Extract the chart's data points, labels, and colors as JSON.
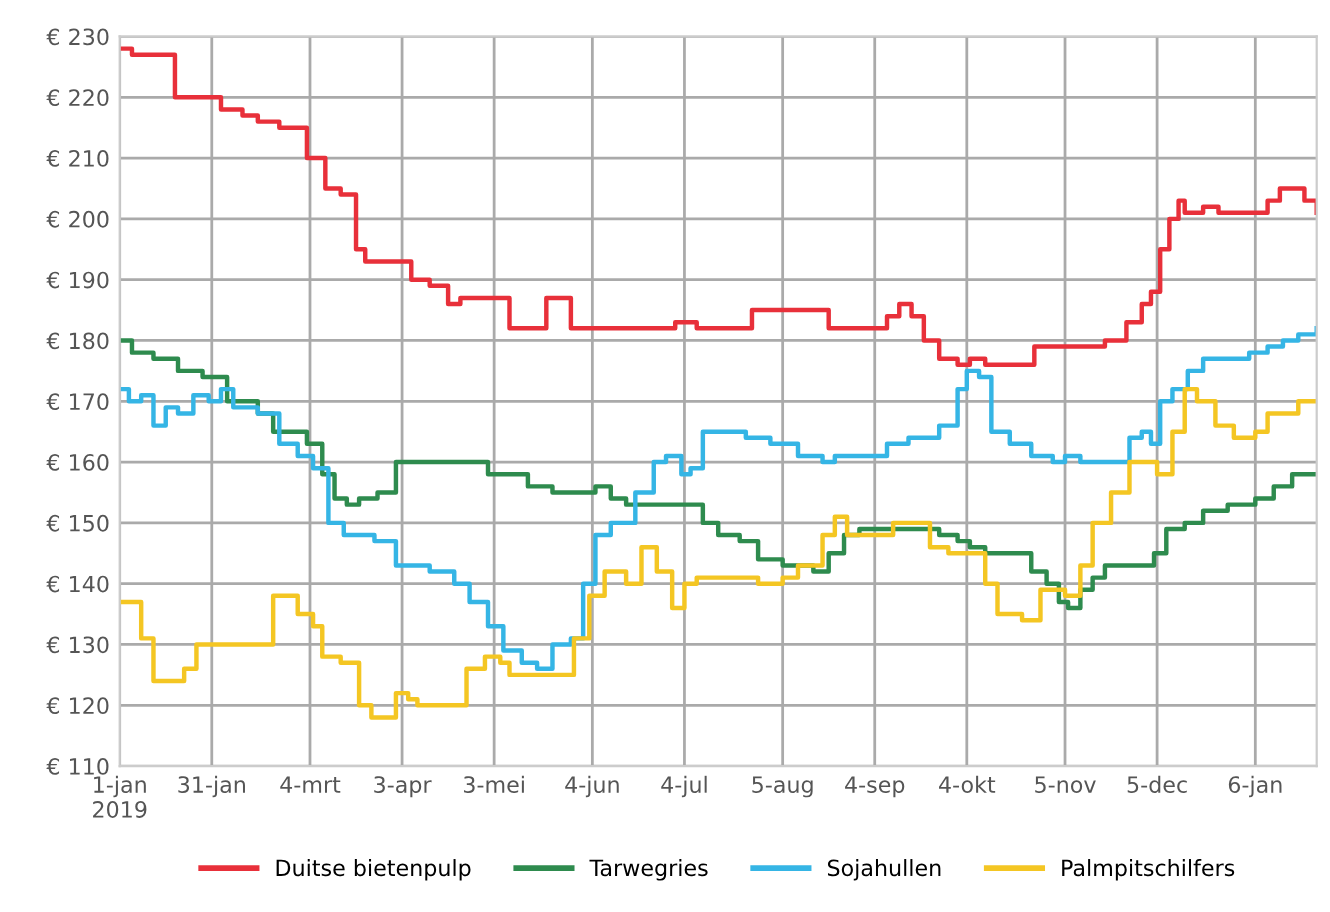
{
  "chart_data": {
    "type": "step",
    "xlim": [
      "2019-01-01",
      "2020-01-26"
    ],
    "xticks": [
      {
        "value": "2019-01-01",
        "label": "1-jan\n2019"
      },
      {
        "value": "2019-01-31",
        "label": "31-jan"
      },
      {
        "value": "2019-03-04",
        "label": "4-mrt"
      },
      {
        "value": "2019-04-03",
        "label": "3-apr"
      },
      {
        "value": "2019-05-03",
        "label": "3-mei"
      },
      {
        "value": "2019-06-04",
        "label": "4-jun"
      },
      {
        "value": "2019-07-04",
        "label": "4-jul"
      },
      {
        "value": "2019-08-05",
        "label": "5-aug"
      },
      {
        "value": "2019-09-04",
        "label": "4-sep"
      },
      {
        "value": "2019-10-04",
        "label": "4-okt"
      },
      {
        "value": "2019-11-05",
        "label": "5-nov"
      },
      {
        "value": "2019-12-05",
        "label": "5-dec"
      },
      {
        "value": "2020-01-06",
        "label": "6-jan"
      }
    ],
    "ylim": [
      110,
      230
    ],
    "yticks": [
      {
        "value": 110,
        "label": "€ 110"
      },
      {
        "value": 120,
        "label": "€ 120"
      },
      {
        "value": 130,
        "label": "€ 130"
      },
      {
        "value": 140,
        "label": "€ 140"
      },
      {
        "value": 150,
        "label": "€ 150"
      },
      {
        "value": 160,
        "label": "€ 160"
      },
      {
        "value": 170,
        "label": "€ 170"
      },
      {
        "value": 180,
        "label": "€ 180"
      },
      {
        "value": 190,
        "label": "€ 190"
      },
      {
        "value": 200,
        "label": "€ 200"
      },
      {
        "value": 210,
        "label": "€ 210"
      },
      {
        "value": 220,
        "label": "€ 220"
      },
      {
        "value": 230,
        "label": "€ 230"
      }
    ],
    "grid": true,
    "legend": "bottom",
    "line_style": "solid",
    "marker": "none",
    "series": [
      {
        "name": "Duitse bietenpulp",
        "color": "#e8303a",
        "x": [
          "2019-01-01",
          "2019-01-05",
          "2019-01-14",
          "2019-01-19",
          "2019-01-31",
          "2019-02-03",
          "2019-02-10",
          "2019-02-15",
          "2019-02-22",
          "2019-02-28",
          "2019-03-03",
          "2019-03-06",
          "2019-03-09",
          "2019-03-14",
          "2019-03-19",
          "2019-03-22",
          "2019-04-03",
          "2019-04-06",
          "2019-04-12",
          "2019-04-18",
          "2019-04-22",
          "2019-05-05",
          "2019-05-08",
          "2019-05-17",
          "2019-05-20",
          "2019-05-25",
          "2019-05-28",
          "2019-06-20",
          "2019-06-28",
          "2019-07-01",
          "2019-07-08",
          "2019-07-22",
          "2019-07-26",
          "2019-08-15",
          "2019-08-20",
          "2019-09-05",
          "2019-09-08",
          "2019-09-12",
          "2019-09-16",
          "2019-09-20",
          "2019-09-25",
          "2019-10-01",
          "2019-10-05",
          "2019-10-10",
          "2019-10-20",
          "2019-10-26",
          "2019-11-10",
          "2019-11-18",
          "2019-11-25",
          "2019-11-30",
          "2019-12-03",
          "2019-12-06",
          "2019-12-09",
          "2019-12-12",
          "2019-12-14",
          "2019-12-20",
          "2019-12-25",
          "2020-01-06",
          "2020-01-10",
          "2020-01-14",
          "2020-01-18",
          "2020-01-22",
          "2020-01-26"
        ],
        "values": [
          228,
          227,
          227,
          220,
          220,
          218,
          217,
          216,
          215,
          215,
          210,
          210,
          205,
          204,
          195,
          193,
          193,
          190,
          189,
          186,
          187,
          187,
          182,
          182,
          187,
          187,
          182,
          182,
          182,
          183,
          182,
          182,
          185,
          185,
          182,
          182,
          184,
          186,
          184,
          180,
          177,
          176,
          177,
          176,
          176,
          179,
          179,
          180,
          183,
          186,
          188,
          195,
          200,
          203,
          201,
          202,
          201,
          201,
          203,
          205,
          205,
          203,
          201
        ]
      },
      {
        "name": "Tarwegries",
        "color": "#2e8b4e",
        "x": [
          "2019-01-01",
          "2019-01-05",
          "2019-01-12",
          "2019-01-20",
          "2019-01-28",
          "2019-02-01",
          "2019-02-05",
          "2019-02-15",
          "2019-02-20",
          "2019-02-28",
          "2019-03-03",
          "2019-03-08",
          "2019-03-12",
          "2019-03-16",
          "2019-03-20",
          "2019-03-26",
          "2019-04-01",
          "2019-04-28",
          "2019-05-01",
          "2019-05-10",
          "2019-05-14",
          "2019-05-22",
          "2019-06-01",
          "2019-06-05",
          "2019-06-10",
          "2019-06-15",
          "2019-07-05",
          "2019-07-10",
          "2019-07-15",
          "2019-07-22",
          "2019-07-28",
          "2019-08-05",
          "2019-08-15",
          "2019-08-20",
          "2019-08-25",
          "2019-08-30",
          "2019-09-20",
          "2019-09-25",
          "2019-10-01",
          "2019-10-05",
          "2019-10-10",
          "2019-10-20",
          "2019-10-25",
          "2019-10-30",
          "2019-11-03",
          "2019-11-06",
          "2019-11-10",
          "2019-11-14",
          "2019-11-18",
          "2019-11-30",
          "2019-12-04",
          "2019-12-08",
          "2019-12-14",
          "2019-12-20",
          "2019-12-28",
          "2020-01-06",
          "2020-01-12",
          "2020-01-18",
          "2020-01-26"
        ],
        "values": [
          180,
          178,
          177,
          175,
          174,
          174,
          170,
          168,
          165,
          165,
          163,
          158,
          154,
          153,
          154,
          155,
          160,
          160,
          158,
          158,
          156,
          155,
          155,
          156,
          154,
          153,
          153,
          150,
          148,
          147,
          144,
          143,
          142,
          145,
          148,
          149,
          149,
          148,
          147,
          146,
          145,
          145,
          142,
          140,
          137,
          136,
          139,
          141,
          143,
          143,
          145,
          149,
          150,
          152,
          153,
          154,
          156,
          158,
          158
        ]
      },
      {
        "name": "Sojahullen",
        "color": "#35b5e5",
        "x": [
          "2019-01-01",
          "2019-01-04",
          "2019-01-08",
          "2019-01-12",
          "2019-01-16",
          "2019-01-20",
          "2019-01-25",
          "2019-01-30",
          "2019-02-03",
          "2019-02-07",
          "2019-02-15",
          "2019-02-22",
          "2019-02-28",
          "2019-03-05",
          "2019-03-10",
          "2019-03-15",
          "2019-03-25",
          "2019-04-01",
          "2019-04-12",
          "2019-04-20",
          "2019-04-25",
          "2019-05-01",
          "2019-05-06",
          "2019-05-12",
          "2019-05-17",
          "2019-05-22",
          "2019-05-28",
          "2019-06-01",
          "2019-06-05",
          "2019-06-10",
          "2019-06-18",
          "2019-06-24",
          "2019-06-28",
          "2019-07-03",
          "2019-07-06",
          "2019-07-10",
          "2019-07-18",
          "2019-07-24",
          "2019-08-01",
          "2019-08-10",
          "2019-08-18",
          "2019-08-22",
          "2019-09-01",
          "2019-09-08",
          "2019-09-15",
          "2019-09-25",
          "2019-10-01",
          "2019-10-04",
          "2019-10-08",
          "2019-10-12",
          "2019-10-18",
          "2019-10-25",
          "2019-11-01",
          "2019-11-05",
          "2019-11-10",
          "2019-11-22",
          "2019-11-26",
          "2019-11-30",
          "2019-12-03",
          "2019-12-06",
          "2019-12-10",
          "2019-12-15",
          "2019-12-20",
          "2019-12-28",
          "2020-01-04",
          "2020-01-10",
          "2020-01-15",
          "2020-01-20",
          "2020-01-26"
        ],
        "values": [
          172,
          170,
          171,
          166,
          169,
          168,
          171,
          170,
          172,
          169,
          168,
          163,
          161,
          159,
          150,
          148,
          147,
          143,
          142,
          140,
          137,
          133,
          129,
          127,
          126,
          130,
          131,
          140,
          148,
          150,
          155,
          160,
          161,
          158,
          159,
          165,
          165,
          164,
          163,
          161,
          160,
          161,
          161,
          163,
          164,
          166,
          172,
          175,
          174,
          165,
          163,
          161,
          160,
          161,
          160,
          160,
          164,
          165,
          163,
          170,
          172,
          175,
          177,
          177,
          178,
          179,
          180,
          181,
          182
        ]
      },
      {
        "name": "Palmpitschilfers",
        "color": "#f4c623",
        "x": [
          "2019-01-01",
          "2019-01-04",
          "2019-01-08",
          "2019-01-12",
          "2019-01-18",
          "2019-01-22",
          "2019-01-26",
          "2019-02-15",
          "2019-02-20",
          "2019-02-24",
          "2019-02-28",
          "2019-03-05",
          "2019-03-08",
          "2019-03-14",
          "2019-03-20",
          "2019-03-24",
          "2019-03-28",
          "2019-04-01",
          "2019-04-05",
          "2019-04-08",
          "2019-04-20",
          "2019-04-24",
          "2019-04-30",
          "2019-05-05",
          "2019-05-08",
          "2019-05-25",
          "2019-05-29",
          "2019-06-03",
          "2019-06-08",
          "2019-06-15",
          "2019-06-20",
          "2019-06-25",
          "2019-06-30",
          "2019-07-04",
          "2019-07-08",
          "2019-07-15",
          "2019-07-28",
          "2019-08-05",
          "2019-08-10",
          "2019-08-18",
          "2019-08-22",
          "2019-08-26",
          "2019-09-04",
          "2019-09-10",
          "2019-09-16",
          "2019-09-22",
          "2019-09-28",
          "2019-10-04",
          "2019-10-10",
          "2019-10-14",
          "2019-10-22",
          "2019-10-28",
          "2019-11-05",
          "2019-11-10",
          "2019-11-14",
          "2019-11-20",
          "2019-11-26",
          "2019-12-02",
          "2019-12-05",
          "2019-12-10",
          "2019-12-14",
          "2019-12-18",
          "2019-12-24",
          "2019-12-30",
          "2020-01-06",
          "2020-01-10",
          "2020-01-15",
          "2020-01-20",
          "2020-01-26"
        ],
        "values": [
          137,
          137,
          131,
          124,
          124,
          126,
          130,
          130,
          138,
          138,
          135,
          133,
          128,
          127,
          120,
          118,
          118,
          122,
          121,
          120,
          120,
          126,
          128,
          127,
          125,
          125,
          131,
          138,
          142,
          140,
          146,
          142,
          136,
          140,
          141,
          141,
          140,
          141,
          143,
          148,
          151,
          148,
          148,
          150,
          150,
          146,
          145,
          145,
          140,
          135,
          134,
          139,
          138,
          143,
          150,
          155,
          160,
          160,
          158,
          165,
          172,
          170,
          166,
          164,
          165,
          168,
          168,
          170,
          170
        ]
      }
    ]
  }
}
